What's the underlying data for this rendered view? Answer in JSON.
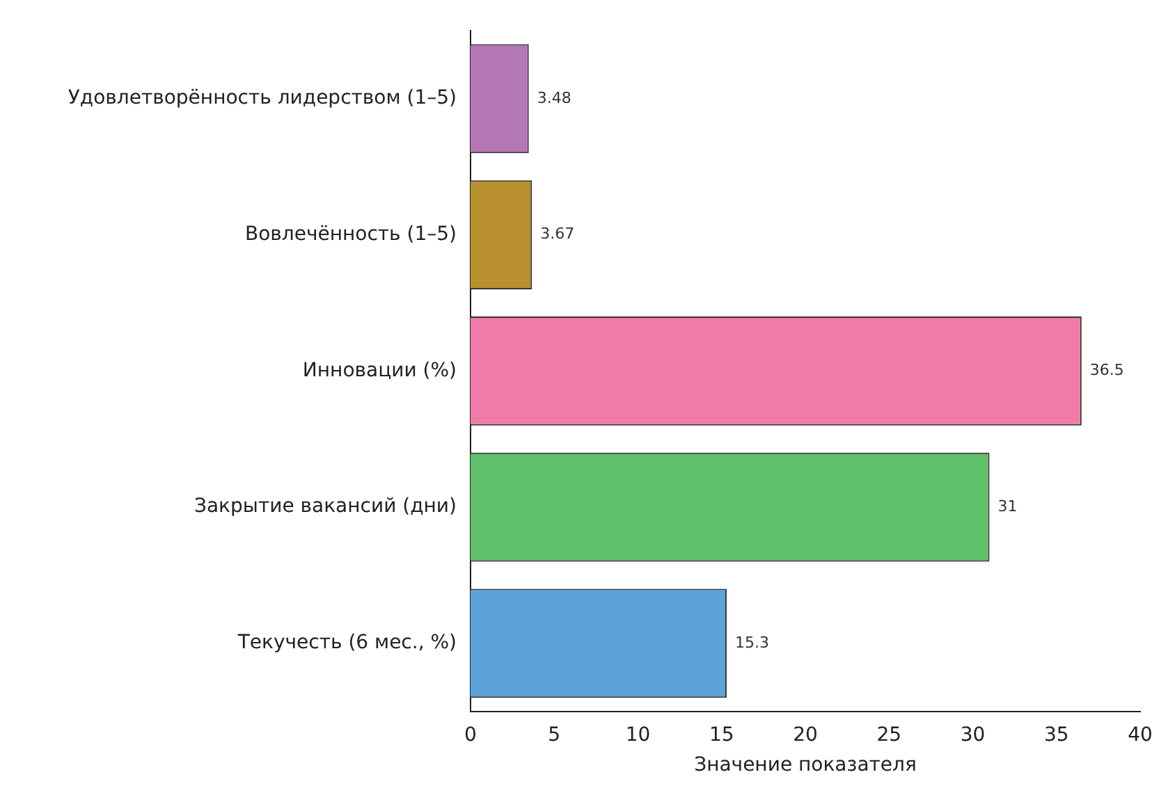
{
  "chart_data": {
    "type": "bar",
    "orientation": "horizontal",
    "xlabel": "Значение показателя",
    "categories": [
      "Удовлетворённость лидерством (1–5)",
      "Вовлечённость (1–5)",
      "Инновации (%)",
      "Закрытие вакансий (дни)",
      "Текучесть (6 мес., %)"
    ],
    "values": [
      3.48,
      3.67,
      36.5,
      31,
      15.3
    ],
    "colors": [
      "#b576b5",
      "#b8902e",
      "#f07aa8",
      "#5fbf6a",
      "#5ba3d9"
    ],
    "xlim": [
      0,
      40
    ],
    "xticks": [
      0,
      5,
      10,
      15,
      20,
      25,
      30,
      35,
      40
    ],
    "grid": false,
    "legend": false,
    "data_labels": true
  }
}
